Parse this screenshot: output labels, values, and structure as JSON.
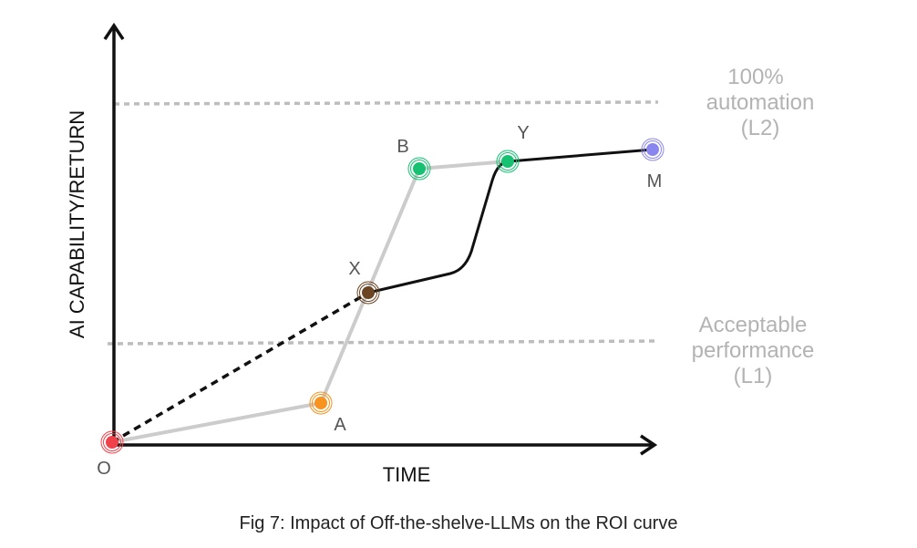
{
  "axes": {
    "y_label": "AI CAPABILITY/RETURN",
    "x_label": "TIME"
  },
  "levels": [
    {
      "id": "l2",
      "lines": [
        "100%",
        "automation",
        "(L2)"
      ],
      "color": "#b3b3b3"
    },
    {
      "id": "l1",
      "lines": [
        "Acceptable",
        "performance",
        "(L1)"
      ],
      "color": "#b3b3b3"
    }
  ],
  "points": [
    {
      "id": "O",
      "label": "O",
      "color": "#f0424a"
    },
    {
      "id": "A",
      "label": "A",
      "color": "#f7931e"
    },
    {
      "id": "B",
      "label": "B",
      "color": "#16c172"
    },
    {
      "id": "X",
      "label": "X",
      "color": "#6b4423"
    },
    {
      "id": "Y",
      "label": "Y",
      "color": "#16c172"
    },
    {
      "id": "M",
      "label": "M",
      "color": "#8a86f0"
    }
  ],
  "curves": [
    {
      "id": "gray-roi-curve",
      "path": [
        "O",
        "A",
        "B",
        "Y"
      ],
      "color": "#cccccc",
      "style": "solid"
    },
    {
      "id": "dashed-llm-segment",
      "path": [
        "O",
        "X"
      ],
      "color": "#111111",
      "style": "dashed"
    },
    {
      "id": "black-llm-curve",
      "path": [
        "X",
        "Y",
        "M"
      ],
      "color": "#111111",
      "style": "solid"
    }
  ],
  "caption": "Fig 7: Impact of Off-the-shelve-LLMs on the ROI curve"
}
